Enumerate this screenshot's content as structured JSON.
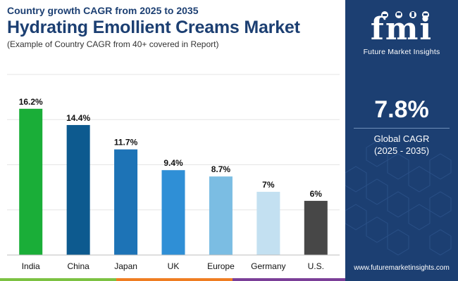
{
  "header": {
    "subtitle": "Country growth CAGR from 2025 to 2035",
    "title": "Hydrating Emollient Creams Market",
    "note": "(Example of Country CAGR from 40+ covered in Report)"
  },
  "chart_data": {
    "type": "bar",
    "categories": [
      "India",
      "China",
      "Japan",
      "UK",
      "Europe",
      "Germany",
      "U.S."
    ],
    "values": [
      16.2,
      14.4,
      11.7,
      9.4,
      8.7,
      7,
      6
    ],
    "data_labels": [
      "16.2%",
      "14.4%",
      "11.7%",
      "9.4%",
      "8.7%",
      "7%",
      "6%"
    ],
    "colors": [
      "#1aae38",
      "#0d5a8f",
      "#1d73b6",
      "#2f8fd6",
      "#7bbde3",
      "#c3e0f1",
      "#474747"
    ],
    "ylim": [
      0,
      20
    ],
    "grid": true,
    "legend": "none"
  },
  "panel": {
    "logo_mark": "fmi",
    "logo_name": "Future Market Insights",
    "stat_value": "7.8%",
    "stat_label": "Global CAGR",
    "stat_period": "(2025 - 2035)",
    "website": "www.futuremarketinsights.com",
    "background": "#1c3f72"
  },
  "stripe_colors": [
    "#7cc242",
    "#ef7d22",
    "#7b3f98",
    "#1c3f72"
  ]
}
